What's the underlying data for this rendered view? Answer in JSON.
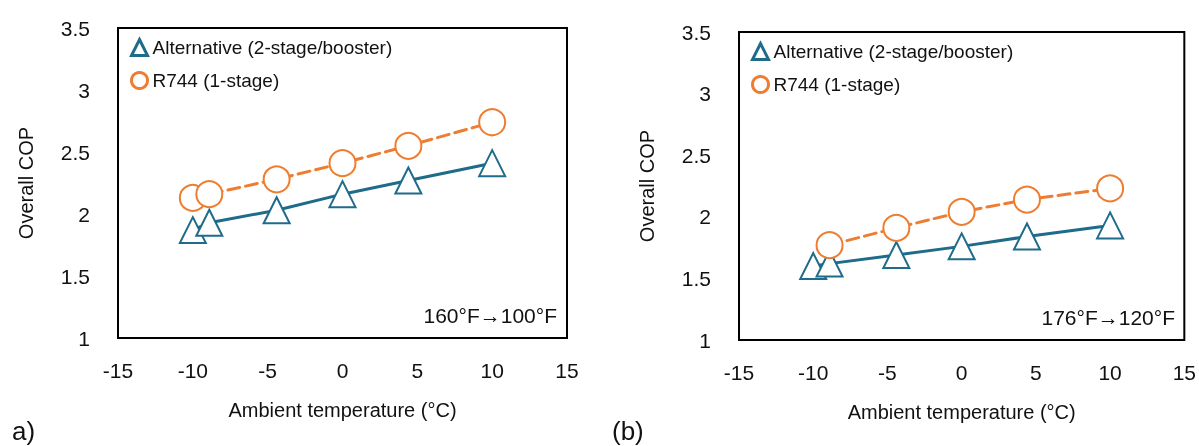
{
  "chart_data": [
    {
      "type": "line",
      "xlabel": "Ambient temperature (°C)",
      "ylabel": "Overall COP",
      "xlim": [
        -15,
        15
      ],
      "xticks": [
        -15,
        -10,
        -5,
        0,
        5,
        10,
        15
      ],
      "ylim": [
        1,
        3.5
      ],
      "yticks": [
        1,
        1.5,
        2,
        2.5,
        3,
        3.5
      ],
      "grid": false,
      "legend": "top left",
      "annotations": [
        "160°F→100°F",
        "a)"
      ],
      "series": [
        {
          "name": "Alternative (2-stage/booster)",
          "color": "#1f6b8a",
          "marker": "triangle",
          "line_style": "solid",
          "x": [
            -10,
            -8.9,
            -4.4,
            0,
            4.4,
            10
          ],
          "values": [
            1.87,
            1.93,
            2.03,
            2.16,
            2.27,
            2.41
          ]
        },
        {
          "name": "R744 (1-stage)",
          "color": "#ee7d31",
          "marker": "circle",
          "line_style": "dashed",
          "x": [
            -10,
            -8.9,
            -4.4,
            0,
            4.4,
            10
          ],
          "values": [
            2.13,
            2.16,
            2.28,
            2.41,
            2.55,
            2.74
          ]
        }
      ]
    },
    {
      "type": "line",
      "xlabel": "Ambient temperature (°C)",
      "ylabel": "Overall COP",
      "xlim": [
        -15,
        15
      ],
      "xticks": [
        -15,
        -10,
        -5,
        0,
        5,
        10,
        15
      ],
      "ylim": [
        1,
        3.5
      ],
      "yticks": [
        1,
        1.5,
        2,
        2.5,
        3,
        3.5
      ],
      "grid": false,
      "legend": "top left",
      "annotations": [
        "176°F→120°F",
        "(b)"
      ],
      "series": [
        {
          "name": "Alternative (2-stage/booster)",
          "color": "#1f6b8a",
          "marker": "triangle",
          "line_style": "solid",
          "x": [
            -10,
            -8.9,
            -4.4,
            0,
            4.4,
            10
          ],
          "values": [
            1.6,
            1.62,
            1.69,
            1.76,
            1.84,
            1.93
          ]
        },
        {
          "name": "R744 (1-stage)",
          "color": "#ee7d31",
          "marker": "circle",
          "line_style": "dashed",
          "x": [
            -8.9,
            -4.4,
            0,
            4.4,
            10
          ],
          "values": [
            1.77,
            1.91,
            2.04,
            2.14,
            2.23
          ]
        }
      ]
    }
  ]
}
